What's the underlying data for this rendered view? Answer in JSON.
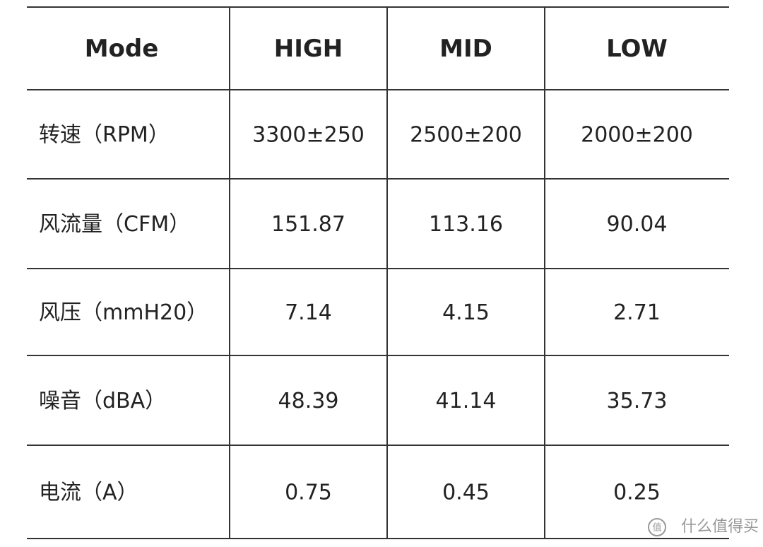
{
  "table": {
    "header": [
      "Mode",
      "HIGH",
      "MID",
      "LOW"
    ],
    "rows": [
      [
        "转速（RPM）",
        "3300±250",
        "2500±200",
        "2000±200"
      ],
      [
        "风流量（CFM）",
        "151.87",
        "113.16",
        "90.04"
      ],
      [
        "风压（mmH20）",
        "7.14",
        "4.15",
        "2.71"
      ],
      [
        "噪音（dBA）",
        "48.39",
        "41.14",
        "35.73"
      ],
      [
        "电流（A）",
        "0.75",
        "0.45",
        "0.25"
      ]
    ]
  },
  "watermark": {
    "icon": "值",
    "text": "什么值得买"
  }
}
